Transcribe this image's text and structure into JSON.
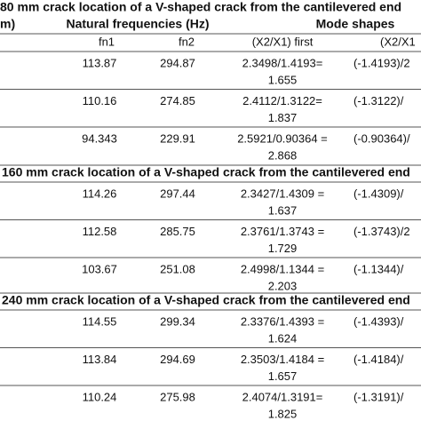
{
  "header": {
    "unit": "m)",
    "natural": "Natural frequencies (Hz)",
    "mode_shapes": "Mode shapes",
    "fn1": "fn1",
    "fn2": "fn2",
    "first": "(X2/X1) first",
    "second": "(X2/X1"
  },
  "sections": [
    {
      "title": "80 mm crack location of a V-shaped crack from the cantilevered end",
      "rows": [
        {
          "fn1": "113.87",
          "fn2": "294.87",
          "ratio": "2.3498/1.4193=",
          "result": "1.655",
          "mode": "(-1.4193)/2"
        },
        {
          "fn1": "110.16",
          "fn2": "274.85",
          "ratio": "2.4112/1.3122=",
          "result": "1.837",
          "mode": "(-1.3122)/"
        },
        {
          "fn1": "94.343",
          "fn2": "229.91",
          "ratio": "2.5921/0.90364 =",
          "result": "2.868",
          "mode": "(-0.90364)/"
        }
      ]
    },
    {
      "title": "160 mm crack location of a V-shaped crack from the cantilevered end",
      "rows": [
        {
          "fn1": "114.26",
          "fn2": "297.44",
          "ratio": "2.3427/1.4309 =",
          "result": "1.637",
          "mode": "(-1.4309)/"
        },
        {
          "fn1": "112.58",
          "fn2": "285.75",
          "ratio": "2.3761/1.3743 =",
          "result": "1.729",
          "mode": "(-1.3743)/2"
        },
        {
          "fn1": "103.67",
          "fn2": "251.08",
          "ratio": "2.4998/1.1344 =",
          "result": "2.203",
          "mode": "(-1.1344)/"
        }
      ]
    },
    {
      "title": "240 mm crack location of a V-shaped crack from the cantilevered end",
      "rows": [
        {
          "fn1": "114.55",
          "fn2": "299.34",
          "ratio": "2.3376/1.4393 =",
          "result": "1.624",
          "mode": "(-1.4393)/"
        },
        {
          "fn1": "113.84",
          "fn2": "294.69",
          "ratio": "2.3503/1.4184 =",
          "result": "1.657",
          "mode": "(-1.4184)/"
        },
        {
          "fn1": "110.24",
          "fn2": "275.98",
          "ratio": "2.4074/1.3191=",
          "result": "1.825",
          "mode": "(-1.3191)/"
        }
      ]
    }
  ]
}
